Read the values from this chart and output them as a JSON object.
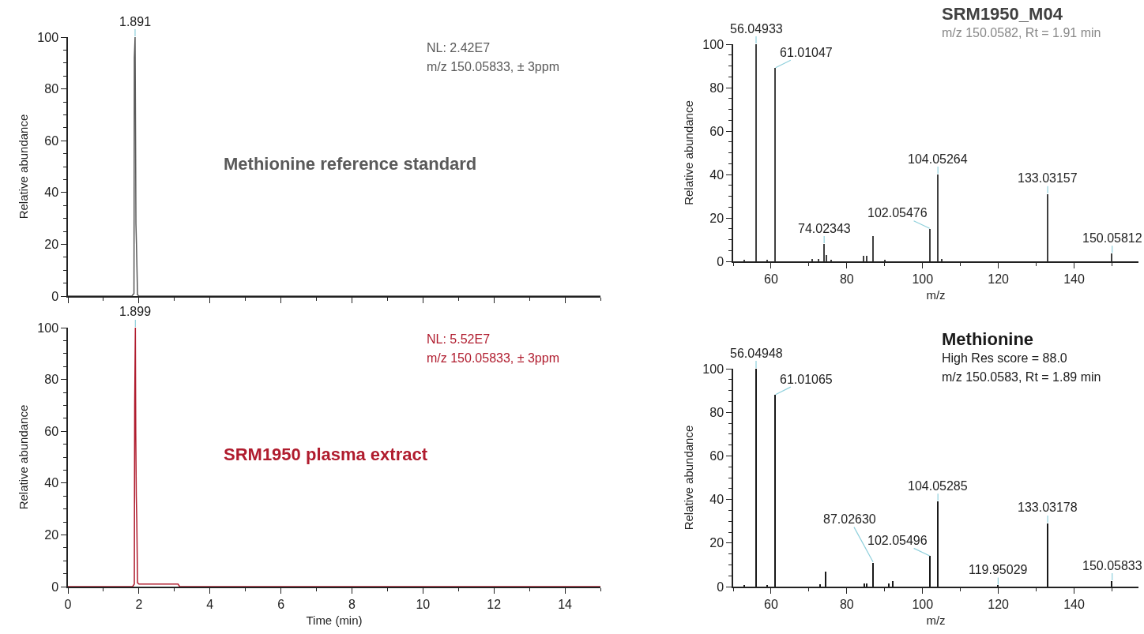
{
  "chart_data": [
    {
      "type": "line",
      "title": "Methionine reference standard",
      "ylabel": "Relative abundance",
      "xlim": [
        0,
        15
      ],
      "ylim": [
        0,
        100
      ],
      "xticks": [
        0,
        2,
        4,
        6,
        8,
        10,
        12,
        14
      ],
      "yticks": [
        0,
        20,
        40,
        60,
        80,
        100
      ],
      "tick_labels": "y",
      "marker": "none",
      "line_style": "solid",
      "series": [
        {
          "color": "#5a5a5a",
          "x": [
            0,
            1.8,
            1.86,
            1.87,
            1.891,
            1.905,
            1.915,
            1.93,
            1.96,
            2.0,
            15
          ],
          "values": [
            0,
            0,
            1,
            92,
            100,
            60,
            28,
            20,
            0.5,
            0,
            0
          ]
        }
      ],
      "annotations": [
        {
          "text": "1.891",
          "x": 1.891,
          "y": 100
        },
        "NL: 2.42E7",
        "m/z 150.05833, ± 3ppm"
      ]
    },
    {
      "type": "line",
      "title": "SRM1950 plasma extract",
      "xlabel": "Time (min)",
      "ylabel": "Relative abundance",
      "xlim": [
        0,
        15
      ],
      "ylim": [
        0,
        100
      ],
      "xticks": [
        0,
        2,
        4,
        6,
        8,
        10,
        12,
        14
      ],
      "yticks": [
        0,
        20,
        40,
        60,
        80,
        100
      ],
      "marker": "none",
      "line_style": "solid",
      "series": [
        {
          "color": "#b01c2e",
          "x": [
            0,
            1.82,
            1.87,
            1.88,
            1.899,
            1.91,
            1.925,
            1.94,
            1.96,
            2.0,
            3.1,
            3.15,
            15
          ],
          "values": [
            0,
            0,
            1,
            70,
            100,
            60,
            35,
            25,
            1.5,
            1,
            1,
            0,
            0
          ]
        }
      ],
      "annotations": [
        {
          "text": "1.899",
          "x": 1.899,
          "y": 100
        },
        "NL: 5.52E7",
        "m/z 150.05833, ± 3ppm"
      ]
    },
    {
      "type": "bar",
      "title": "SRM1950_M04",
      "xlabel": "m/z",
      "ylabel": "Relative abundance",
      "xlim": [
        50,
        157
      ],
      "ylim": [
        0,
        100
      ],
      "xticks": [
        60,
        80,
        100,
        120,
        140
      ],
      "yticks": [
        0,
        20,
        40,
        60,
        80,
        100
      ],
      "series": [
        {
          "color": "#404040",
          "x": [
            53,
            56.04933,
            59,
            61.01047,
            71,
            72.5,
            74.02343,
            74.6,
            76,
            84.5,
            85.2,
            87.0,
            90,
            102.05476,
            104.05264,
            105.2,
            133.03157,
            150.05812
          ],
          "values": [
            0.5,
            100,
            0.5,
            89,
            1,
            1,
            8,
            3,
            0.5,
            2.5,
            2.5,
            11.5,
            0.5,
            15,
            40,
            1,
            31,
            3.5
          ]
        }
      ],
      "annotations": [
        "m/z 150.0582, Rt = 1.91 min",
        {
          "text": "56.04933",
          "x": 56.04933,
          "y": 100
        },
        {
          "text": "61.01047",
          "x": 61.01047,
          "y": 89
        },
        {
          "text": "74.02343",
          "x": 74.02343,
          "y": 8
        },
        {
          "text": "102.05476",
          "x": 102.05476,
          "y": 15
        },
        {
          "text": "104.05264",
          "x": 104.05264,
          "y": 40
        },
        {
          "text": "133.03157",
          "x": 133.03157,
          "y": 31
        },
        {
          "text": "150.05812",
          "x": 150.05812,
          "y": 3.5
        }
      ]
    },
    {
      "type": "bar",
      "title": "Methionine",
      "xlabel": "m/z",
      "ylabel": "Relative abundance",
      "xlim": [
        50,
        157
      ],
      "ylim": [
        0,
        100
      ],
      "xticks": [
        60,
        80,
        100,
        120,
        140
      ],
      "yticks": [
        0,
        20,
        40,
        60,
        80,
        100
      ],
      "series": [
        {
          "color": "#1a1a1a",
          "x": [
            53,
            56.04948,
            59,
            61.01065,
            73,
            74.5,
            84.6,
            85.3,
            87.0263,
            91.2,
            92.2,
            102.05496,
            104.05285,
            119.95029,
            133.03178,
            150.05833
          ],
          "values": [
            0.5,
            100,
            0.5,
            88,
            1,
            7,
            1.5,
            1.5,
            11,
            1.5,
            2.5,
            14,
            39,
            0.5,
            29,
            2.5
          ]
        }
      ],
      "annotations": [
        "High Res score = 88.0",
        "m/z 150.0583, Rt = 1.89 min",
        {
          "text": "56.04948",
          "x": 56.04948,
          "y": 100
        },
        {
          "text": "61.01065",
          "x": 61.01065,
          "y": 88
        },
        {
          "text": "87.02630",
          "x": 87.0263,
          "y": 11
        },
        {
          "text": "102.05496",
          "x": 102.05496,
          "y": 14
        },
        {
          "text": "104.05285",
          "x": 104.05285,
          "y": 39
        },
        {
          "text": "119.95029",
          "x": 119.95029,
          "y": 0.5
        },
        {
          "text": "133.03178",
          "x": 133.03178,
          "y": 29
        },
        {
          "text": "150.05833",
          "x": 150.05833,
          "y": 2.5
        }
      ]
    }
  ]
}
